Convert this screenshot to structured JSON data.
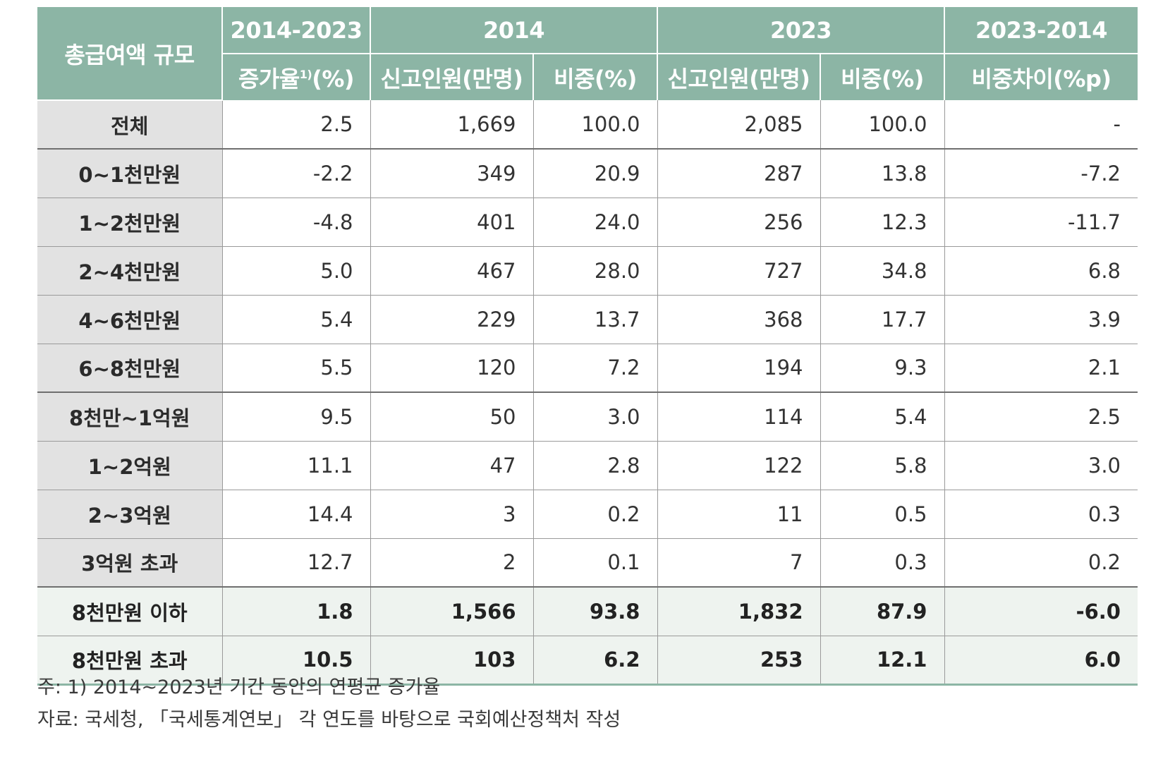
{
  "header": {
    "row_label": "총급여액 규모",
    "groups": [
      "2014-2023",
      "2014",
      "2023",
      "2023-2014"
    ],
    "sub": {
      "growth_prefix": "증가율",
      "growth_sup": "1)",
      "growth_suffix": "(%)",
      "count_2014": "신고인원(만명)",
      "share_2014": "비중(%)",
      "count_2023": "신고인원(만명)",
      "share_2023": "비중(%)",
      "share_diff": "비중차이(%p)"
    }
  },
  "rows": [
    {
      "label": "전체",
      "growth": "2.5",
      "c2014": "1,669",
      "s2014": "100.0",
      "c2023": "2,085",
      "s2023": "100.0",
      "diff": "-"
    },
    {
      "label": "0~1천만원",
      "growth": "-2.2",
      "c2014": "349",
      "s2014": "20.9",
      "c2023": "287",
      "s2023": "13.8",
      "diff": "-7.2"
    },
    {
      "label": "1~2천만원",
      "growth": "-4.8",
      "c2014": "401",
      "s2014": "24.0",
      "c2023": "256",
      "s2023": "12.3",
      "diff": "-11.7"
    },
    {
      "label": "2~4천만원",
      "growth": "5.0",
      "c2014": "467",
      "s2014": "28.0",
      "c2023": "727",
      "s2023": "34.8",
      "diff": "6.8"
    },
    {
      "label": "4~6천만원",
      "growth": "5.4",
      "c2014": "229",
      "s2014": "13.7",
      "c2023": "368",
      "s2023": "17.7",
      "diff": "3.9"
    },
    {
      "label": "6~8천만원",
      "growth": "5.5",
      "c2014": "120",
      "s2014": "7.2",
      "c2023": "194",
      "s2023": "9.3",
      "diff": "2.1"
    },
    {
      "label": "8천만~1억원",
      "growth": "9.5",
      "c2014": "50",
      "s2014": "3.0",
      "c2023": "114",
      "s2023": "5.4",
      "diff": "2.5"
    },
    {
      "label": "1~2억원",
      "growth": "11.1",
      "c2014": "47",
      "s2014": "2.8",
      "c2023": "122",
      "s2023": "5.8",
      "diff": "3.0"
    },
    {
      "label": "2~3억원",
      "growth": "14.4",
      "c2014": "3",
      "s2014": "0.2",
      "c2023": "11",
      "s2023": "0.5",
      "diff": "0.3"
    },
    {
      "label": "3억원 초과",
      "growth": "12.7",
      "c2014": "2",
      "s2014": "0.1",
      "c2023": "7",
      "s2023": "0.3",
      "diff": "0.2"
    },
    {
      "label": "8천만원 이하",
      "growth": "1.8",
      "c2014": "1,566",
      "s2014": "93.8",
      "c2023": "1,832",
      "s2023": "87.9",
      "diff": "-6.0"
    },
    {
      "label": "8천만원 초과",
      "growth": "10.5",
      "c2014": "103",
      "s2014": "6.2",
      "c2023": "253",
      "s2023": "12.1",
      "diff": "6.0"
    }
  ],
  "notes": {
    "note": "주: 1) 2014~2023년 기간 동안의 연평균 증가율",
    "source": "자료: 국세청, 「국세통계연보」 각 연도를 바탕으로 국회예산정책처 작성"
  }
}
